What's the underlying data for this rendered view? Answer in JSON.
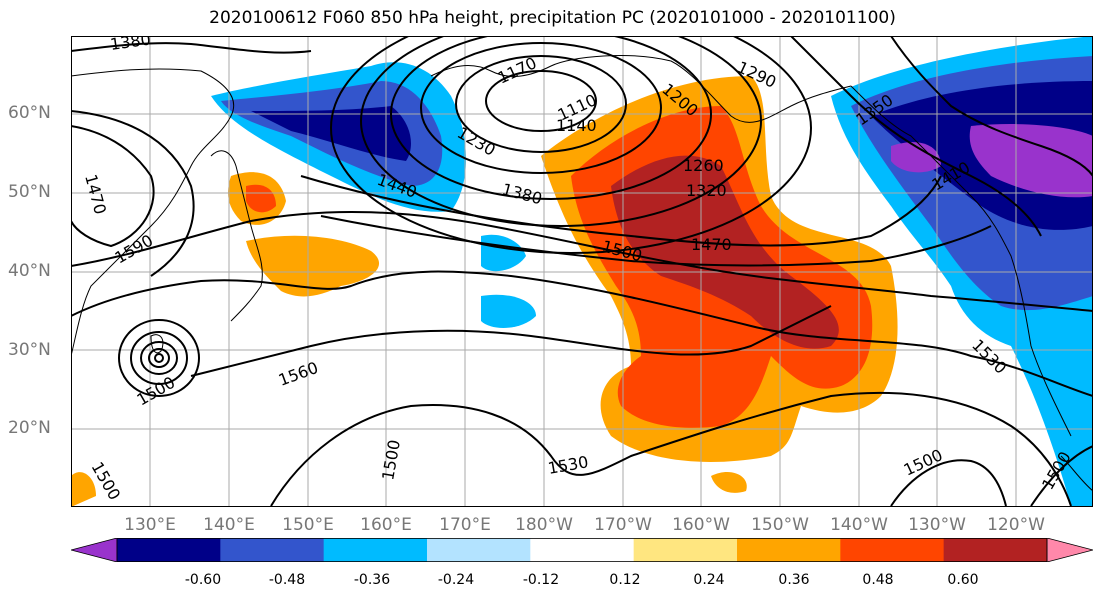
{
  "title": "2020100612 F060 850 hPa height, precipitation PC (2020101000 - 2020101100)",
  "lat_labels": [
    "60°N",
    "50°N",
    "40°N",
    "30°N",
    "20°N"
  ],
  "lon_labels": [
    "130°E",
    "140°E",
    "150°E",
    "160°E",
    "170°E",
    "180°W",
    "170°W",
    "160°W",
    "150°W",
    "140°W",
    "130°W",
    "120°W"
  ],
  "contour_labels": [
    "1380",
    "1470",
    "1590",
    "1500",
    "1560",
    "1500",
    "1500",
    "1170",
    "1110",
    "1140",
    "1230",
    "1440",
    "1380",
    "1200",
    "1260",
    "1320",
    "1500",
    "1470",
    "1290",
    "1350",
    "1410",
    "1530",
    "1530",
    "1500",
    "1500"
  ],
  "colorbar": {
    "colors": [
      "#9933cc",
      "#000088",
      "#3355cc",
      "#00bbff",
      "#b3e3ff",
      "#ffffff",
      "#ffe680",
      "#ffa500",
      "#ff4500",
      "#b22222",
      "#ff88aa"
    ],
    "tick_labels": [
      "-0.60",
      "-0.48",
      "-0.36",
      "-0.24",
      "-0.12",
      "0.12",
      "0.24",
      "0.36",
      "0.48",
      "0.60"
    ]
  },
  "colors": {
    "axis_text": "#777777",
    "gridline": "#aaaaaa",
    "contour": "#000000"
  }
}
